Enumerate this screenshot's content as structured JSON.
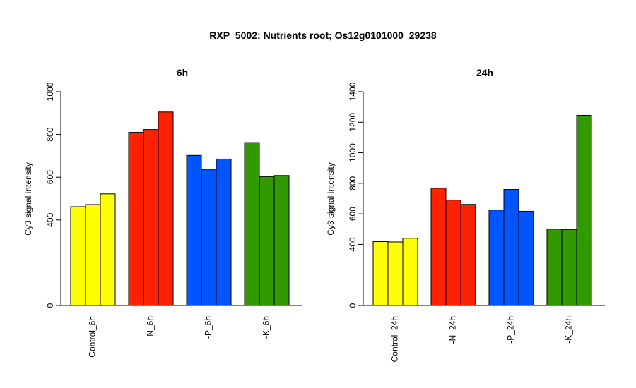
{
  "title": "RXP_5002: Nutrients root; Os12g0101000_29238",
  "chart_data": [
    {
      "type": "bar",
      "title": "6h",
      "ylabel": "Cy3 signal intensity",
      "xlabel": "",
      "ylim": [
        0,
        1000
      ],
      "yticks": [
        0,
        400,
        600,
        800,
        1000
      ],
      "grid": false,
      "categories": [
        "Control_6h",
        "-N_6h",
        "-P_6h",
        "-K_6h"
      ],
      "group_colors": [
        "#ffff00",
        "#ff2200",
        "#0055ff",
        "#339900"
      ],
      "replicates": [
        [
          462,
          472,
          522
        ],
        [
          810,
          823,
          905
        ],
        [
          702,
          637,
          685
        ],
        [
          762,
          603,
          608
        ]
      ]
    },
    {
      "type": "bar",
      "title": "24h",
      "ylabel": "Cy3 signal intensity",
      "xlabel": "",
      "ylim": [
        0,
        1400
      ],
      "yticks": [
        0,
        400,
        600,
        800,
        1000,
        1200,
        1400
      ],
      "grid": false,
      "categories": [
        "Control_24h",
        "-N_24h",
        "-P_24h",
        "-K_24h"
      ],
      "group_colors": [
        "#ffff00",
        "#ff2200",
        "#0055ff",
        "#339900"
      ],
      "replicates": [
        [
          418,
          416,
          440
        ],
        [
          768,
          690,
          662
        ],
        [
          625,
          760,
          617
        ],
        [
          500,
          498,
          1245
        ]
      ]
    }
  ]
}
